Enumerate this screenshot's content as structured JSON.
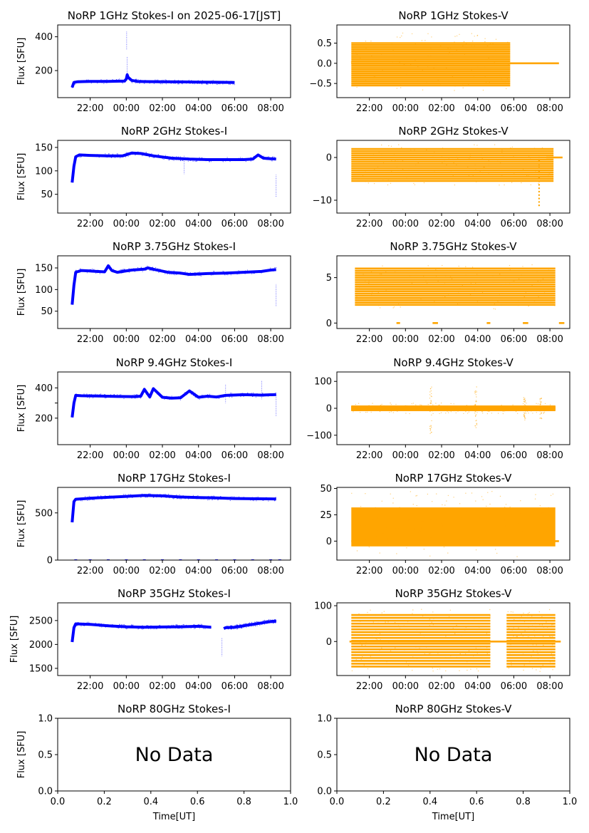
{
  "figure": {
    "series_colors": {
      "stokes_i": "#0000ff",
      "stokes_v": "#ffa500"
    },
    "x_label": "Time[UT]"
  },
  "chart_data": [
    {
      "type": "line",
      "column": "left",
      "row": 0,
      "title": "NoRP 1GHz Stokes-I on 2025-06-17[JST]",
      "ylabel": "Flux [SFU]",
      "ylim": [
        40,
        470
      ],
      "yticks": [
        200,
        400
      ],
      "xticks": [
        "22:00",
        "00:00",
        "02:00",
        "04:00",
        "06:00",
        "08:00"
      ],
      "xlim_hours": [
        20.2,
        33.1
      ],
      "data_range_hours": [
        21.0,
        30.0
      ],
      "x_hours": [
        21.0,
        21.05,
        21.1,
        21.3,
        21.6,
        22.0,
        23.0,
        23.9,
        24.0,
        24.05,
        24.1,
        24.3,
        24.6,
        25.0,
        26.0,
        27.0,
        28.0,
        29.0,
        30.0
      ],
      "values": [
        100,
        115,
        130,
        134,
        135,
        136,
        136,
        138,
        150,
        175,
        160,
        142,
        136,
        135,
        134,
        133,
        132,
        131,
        130
      ],
      "spikes": [
        [
          24.02,
          430
        ],
        [
          24.05,
          280
        ]
      ]
    },
    {
      "type": "scatter",
      "column": "right",
      "row": 0,
      "title": "NoRP 1GHz Stokes-V",
      "ylabel": "",
      "ylim": [
        -0.85,
        0.95
      ],
      "yticks": [
        -0.5,
        0.0,
        0.5
      ],
      "yticklabels": [
        "−0.5",
        "0.0",
        "0.5"
      ],
      "xticks": [
        "22:00",
        "00:00",
        "02:00",
        "04:00",
        "06:00",
        "08:00"
      ],
      "xlim_hours": [
        20.2,
        33.1
      ],
      "band_hours": [
        21.0,
        29.8
      ],
      "band_range": [
        -0.55,
        0.5
      ],
      "band_step": 0.05,
      "scatter_range": [
        -0.7,
        0.75
      ],
      "zero_line_hours": [
        21.0,
        32.5
      ]
    },
    {
      "type": "line",
      "column": "left",
      "row": 1,
      "title": "NoRP 2GHz Stokes-I",
      "ylabel": "Flux [SFU]",
      "ylim": [
        10,
        165
      ],
      "yticks": [
        50,
        100,
        150
      ],
      "xticks": [
        "22:00",
        "00:00",
        "02:00",
        "04:00",
        "06:00",
        "08:00"
      ],
      "xlim_hours": [
        20.2,
        33.1
      ],
      "data_range_hours": [
        21.0,
        32.3
      ],
      "x_hours": [
        21.0,
        21.1,
        21.2,
        21.4,
        22.0,
        23.0,
        23.8,
        24.3,
        24.8,
        25.5,
        26.5,
        27.5,
        28.5,
        29.5,
        30.5,
        31.0,
        31.3,
        31.6,
        32.0,
        32.3
      ],
      "values": [
        75,
        110,
        130,
        134,
        133,
        132,
        132,
        138,
        137,
        132,
        127,
        125,
        124,
        124,
        124,
        125,
        134,
        127,
        126,
        125
      ],
      "spikes": [
        [
          32.3,
          45
        ],
        [
          27.2,
          132
        ]
      ]
    },
    {
      "type": "scatter",
      "column": "right",
      "row": 1,
      "title": "NoRP 2GHz Stokes-V",
      "ylabel": "",
      "ylim": [
        -13,
        4
      ],
      "yticks": [
        -10,
        0
      ],
      "yticklabels": [
        "−10",
        "0"
      ],
      "xticks": [
        "22:00",
        "00:00",
        "02:00",
        "04:00",
        "06:00",
        "08:00"
      ],
      "xlim_hours": [
        20.2,
        33.1
      ],
      "band_hours": [
        21.0,
        32.2
      ],
      "band_range": [
        -5.5,
        2
      ],
      "band_step": 0.5,
      "scatter_range": [
        -6.5,
        3
      ],
      "zero_line_hours": [
        31.8,
        32.7
      ],
      "dip": {
        "hour": 31.4,
        "min": -12
      }
    },
    {
      "type": "line",
      "column": "left",
      "row": 2,
      "title": "NoRP 3.75GHz Stokes-I",
      "ylabel": "Flux [SFU]",
      "ylim": [
        10,
        178
      ],
      "yticks": [
        50,
        100,
        150
      ],
      "xticks": [
        "22:00",
        "00:00",
        "02:00",
        "04:00",
        "06:00",
        "08:00"
      ],
      "xlim_hours": [
        20.2,
        33.1
      ],
      "data_range_hours": [
        21.0,
        32.3
      ],
      "x_hours": [
        21.0,
        21.1,
        21.2,
        21.5,
        22.0,
        22.8,
        23.0,
        23.2,
        23.5,
        24.3,
        25.0,
        25.2,
        25.6,
        26.3,
        27.0,
        27.5,
        28.5,
        29.5,
        30.5,
        31.5,
        32.0,
        32.3
      ],
      "values": [
        65,
        110,
        140,
        144,
        143,
        141,
        155,
        144,
        140,
        145,
        147,
        150,
        146,
        140,
        138,
        135,
        137,
        138,
        140,
        142,
        145,
        146
      ],
      "spikes": [
        [
          32.3,
          62
        ]
      ]
    },
    {
      "type": "scatter",
      "column": "right",
      "row": 2,
      "title": "NoRP 3.75GHz Stokes-V",
      "ylabel": "",
      "ylim": [
        -0.6,
        7.4
      ],
      "yticks": [
        0,
        5
      ],
      "yticklabels": [
        "0",
        "5"
      ],
      "xticks": [
        "22:00",
        "00:00",
        "02:00",
        "04:00",
        "06:00",
        "08:00"
      ],
      "xlim_hours": [
        20.2,
        33.1
      ],
      "band_hours": [
        21.2,
        32.3
      ],
      "band_range": [
        2,
        6
      ],
      "band_step": 0.25,
      "scatter_range": [
        1.5,
        6.5
      ],
      "zero_segments": [
        [
          23.5,
          23.7
        ],
        [
          25.5,
          25.8
        ],
        [
          28.5,
          28.7
        ],
        [
          30.5,
          30.8
        ],
        [
          32.5,
          32.8
        ]
      ]
    },
    {
      "type": "line",
      "column": "left",
      "row": 3,
      "title": "NoRP 9.4GHz Stokes-I",
      "ylabel": "Flux [SFU]",
      "ylim": [
        25,
        505
      ],
      "yticks": [
        200,
        300,
        400
      ],
      "yticklabels": [
        "200",
        "",
        "400"
      ],
      "xticks": [
        "22:00",
        "00:00",
        "02:00",
        "04:00",
        "06:00",
        "08:00"
      ],
      "xlim_hours": [
        20.2,
        33.1
      ],
      "data_range_hours": [
        21.0,
        32.3
      ],
      "x_hours": [
        21.0,
        21.1,
        21.2,
        21.5,
        22.5,
        23.5,
        24.5,
        24.8,
        25.0,
        25.3,
        25.5,
        26.0,
        26.5,
        27.0,
        27.5,
        28.0,
        28.5,
        29.0,
        29.5,
        30.5,
        31.5,
        32.3
      ],
      "values": [
        205,
        300,
        350,
        348,
        346,
        343,
        342,
        345,
        390,
        340,
        395,
        338,
        332,
        334,
        380,
        338,
        345,
        340,
        350,
        355,
        352,
        356
      ],
      "spikes": [
        [
          29.5,
          420
        ],
        [
          31.5,
          445
        ],
        [
          32.3,
          215
        ]
      ]
    },
    {
      "type": "scatter",
      "column": "right",
      "row": 3,
      "title": "NoRP 9.4GHz Stokes-V",
      "ylabel": "",
      "ylim": [
        -135,
        135
      ],
      "yticks": [
        -100,
        0,
        100
      ],
      "yticklabels": [
        "−100",
        "0",
        "100"
      ],
      "xticks": [
        "22:00",
        "00:00",
        "02:00",
        "04:00",
        "06:00",
        "08:00"
      ],
      "xlim_hours": [
        20.2,
        33.1
      ],
      "band_hours": [
        21.0,
        32.3
      ],
      "band_range": [
        -7,
        7
      ],
      "band_step": 1,
      "scatter_range": [
        -20,
        20
      ],
      "bursts": [
        [
          25.4,
          95
        ],
        [
          27.9,
          80
        ],
        [
          30.6,
          45
        ],
        [
          31.5,
          40
        ]
      ]
    },
    {
      "type": "line",
      "column": "left",
      "row": 4,
      "title": "NoRP 17GHz Stokes-I",
      "ylabel": "Flux [SFU]",
      "ylim": [
        0,
        770
      ],
      "yticks": [
        0,
        500
      ],
      "xticks": [
        "22:00",
        "00:00",
        "02:00",
        "04:00",
        "06:00",
        "08:00"
      ],
      "xlim_hours": [
        20.2,
        33.1
      ],
      "data_range_hours": [
        21.0,
        32.3
      ],
      "x_hours": [
        21.0,
        21.1,
        21.2,
        22.0,
        23.0,
        24.0,
        25.0,
        26.0,
        27.0,
        28.0,
        29.0,
        30.0,
        31.0,
        32.3
      ],
      "values": [
        400,
        620,
        645,
        655,
        665,
        675,
        685,
        680,
        668,
        662,
        658,
        652,
        650,
        648
      ],
      "zero_marks_hours": [
        21.2,
        22.0,
        23.0,
        24.0,
        25.0,
        26.0,
        27.0,
        28.0,
        29.0,
        30.0,
        31.0,
        32.0,
        32.5
      ]
    },
    {
      "type": "scatter",
      "column": "right",
      "row": 4,
      "title": "NoRP 17GHz Stokes-V",
      "ylabel": "",
      "ylim": [
        -18,
        51
      ],
      "yticks": [
        0,
        25,
        50
      ],
      "yticklabels": [
        "0",
        "25",
        "50"
      ],
      "xticks": [
        "22:00",
        "00:00",
        "02:00",
        "04:00",
        "06:00",
        "08:00"
      ],
      "xlim_hours": [
        20.2,
        33.1
      ],
      "band_hours": [
        21.0,
        32.3
      ],
      "band_range": [
        -5,
        32
      ],
      "band_step": 0,
      "scatter_range": [
        -15,
        48
      ],
      "zero_line_hours": [
        21.0,
        32.5
      ]
    },
    {
      "type": "line",
      "column": "left",
      "row": 5,
      "title": "NoRP 35GHz Stokes-I",
      "ylabel": "Flux [SFU]",
      "ylim": [
        1350,
        2870
      ],
      "yticks": [
        1500,
        2000,
        2500
      ],
      "xticks": [
        "22:00",
        "00:00",
        "02:00",
        "04:00",
        "06:00",
        "08:00"
      ],
      "xlim_hours": [
        20.2,
        33.1
      ],
      "data_range_hours": [
        21.0,
        32.3
      ],
      "x_hours": [
        21.0,
        21.1,
        21.2,
        22.0,
        23.0,
        24.0,
        25.0,
        26.0,
        27.0,
        28.0,
        28.7,
        null,
        29.4,
        29.5,
        30.0,
        31.0,
        32.0,
        32.3
      ],
      "values": [
        2050,
        2350,
        2430,
        2420,
        2390,
        2370,
        2360,
        2365,
        2370,
        2380,
        2360,
        null,
        2330,
        2350,
        2360,
        2420,
        2480,
        2490
      ],
      "spikes": [
        [
          29.3,
          2130
        ]
      ]
    },
    {
      "type": "scatter",
      "column": "right",
      "row": 5,
      "title": "NoRP 35GHz Stokes-V",
      "ylabel": "",
      "ylim": [
        -95,
        108
      ],
      "yticks": [
        0,
        100
      ],
      "yticklabels": [
        "0",
        "100"
      ],
      "xticks": [
        "22:00",
        "00:00",
        "02:00",
        "04:00",
        "06:00",
        "08:00"
      ],
      "xlim_hours": [
        20.2,
        33.1
      ],
      "band_segments": [
        [
          21.0,
          28.7
        ],
        [
          29.6,
          32.3
        ]
      ],
      "band_range": [
        -70,
        75
      ],
      "band_step": 8,
      "scatter_range": [
        -85,
        90
      ],
      "zero_line_hours": [
        20.9,
        32.6
      ]
    },
    {
      "type": "scatter",
      "column": "left",
      "row": 6,
      "title": "NoRP 80GHz Stokes-I",
      "ylabel": "Flux [SFU]",
      "xlabel": "Time[UT]",
      "annotation": "No Data",
      "ylim": [
        0.0,
        1.0
      ],
      "xlim": [
        0.0,
        1.0
      ],
      "yticks": [
        "0.0",
        "0.5",
        "1.0"
      ],
      "xticks": [
        "0.0",
        "0.2",
        "0.4",
        "0.6",
        "0.8",
        "1.0"
      ]
    },
    {
      "type": "scatter",
      "column": "right",
      "row": 6,
      "title": "NoRP 80GHz Stokes-V",
      "ylabel": "",
      "xlabel": "Time[UT]",
      "annotation": "No Data",
      "ylim": [
        0.0,
        1.0
      ],
      "xlim": [
        0.0,
        1.0
      ],
      "yticks": [
        "0.0",
        "0.5",
        "1.0"
      ],
      "xticks": [
        "0.0",
        "0.2",
        "0.4",
        "0.6",
        "0.8",
        "1.0"
      ]
    }
  ]
}
